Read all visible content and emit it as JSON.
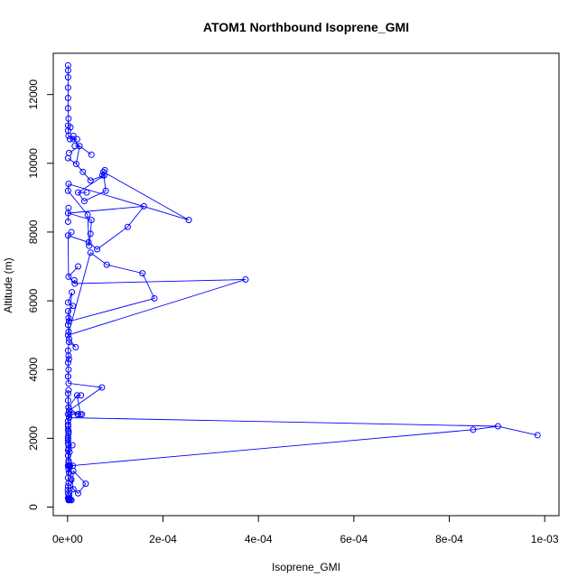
{
  "chart_data": {
    "type": "line",
    "title": "ATOM1 Northbound Isoprene_GMI",
    "xlabel": "Isoprene_GMI",
    "ylabel": "Altitude (m)",
    "xlim": [
      -3e-05,
      0.00103
    ],
    "ylim": [
      -250,
      13200
    ],
    "xticks": [
      0,
      0.0002,
      0.0004,
      0.0006,
      0.0008,
      0.001
    ],
    "xtick_labels": [
      "0e+00",
      "2e-04",
      "4e-04",
      "6e-04",
      "8e-04",
      "1e-03"
    ],
    "yticks": [
      0,
      2000,
      4000,
      6000,
      8000,
      10000,
      12000
    ],
    "ytick_labels": [
      "0",
      "2000",
      "4000",
      "6000",
      "8000",
      "10000",
      "12000"
    ],
    "grid": false,
    "color": "#0000ff",
    "marker": "open-circle",
    "series": [
      {
        "x": [
          2e-06,
          3e-06,
          1e-06,
          2e-06,
          1e-06,
          5e-07,
          1e-06,
          2e-06,
          1e-06,
          3e-06,
          2e-06,
          1e-06,
          2e-06,
          1e-06,
          1e-06,
          2e-06,
          1e-06,
          1e-06,
          2e-06,
          1e-06,
          1e-06,
          3e-06,
          5e-06,
          8e-06,
          1.2e-05,
          2.2e-05,
          3.8e-05,
          1.2e-05,
          8e-06,
          6e-06,
          4e-06,
          3e-06,
          2e-06,
          1e-06,
          2e-06,
          1e-06,
          2e-06,
          1e-06,
          1e-06,
          2e-06,
          1e-06,
          1e-06,
          1e-06,
          2e-06,
          1e-06,
          1e-06,
          3e-06,
          1.1e-05,
          5e-06,
          0.00085,
          0.000902,
          3e-06,
          4e-06,
          2.1e-05,
          2e-06,
          2e-05,
          2.7e-05,
          2.2e-05,
          3e-06,
          7.2e-05,
          2e-06,
          1e-06,
          2e-06,
          1e-06,
          2e-06,
          1e-06,
          3e-06,
          1.7e-05,
          3e-06,
          2e-06,
          1e-06,
          2e-06,
          1e-06,
          1.1e-05,
          1e-06,
          9e-06,
          3e-06,
          0.000182,
          0.000157,
          8.2e-05,
          4.8e-05,
          1e-06,
          0.000373,
          1.5e-05,
          2e-06,
          1e-06,
          4.4e-05,
          6.2e-05,
          0.000126,
          0.00016,
          1e-06,
          5e-05,
          4.8e-05,
          4.5e-05,
          4.2e-05,
          1e-06,
          2e-06,
          0.000254,
          7.5e-05,
          8e-05,
          3.5e-05,
          2.2e-05,
          7.7e-05,
          4.8e-05,
          3.2e-05,
          1.8e-05,
          2.5e-05,
          1.2e-05,
          2e-06,
          1e-06,
          1e-06,
          2e-06,
          1e-06,
          1e-06,
          1e-06,
          1e-06,
          1e-06,
          1e-06
        ],
        "y": [
          200,
          230,
          260,
          320,
          400,
          500,
          600,
          700,
          850,
          1000,
          1100,
          1200,
          1300,
          1500,
          1650,
          1800,
          1950,
          2050,
          2150,
          2250,
          2400,
          1000,
          1200,
          800,
          520,
          400,
          680,
          1050,
          200,
          220,
          250,
          210,
          240,
          1200,
          1350,
          1500,
          1700,
          1850,
          2000,
          2200,
          2350,
          2500,
          2700,
          2900,
          3100,
          3300,
          1200,
          1200,
          1200,
          2250,
          2350,
          2600,
          2700,
          2700,
          2900,
          3250,
          2700,
          2700,
          2800,
          3480,
          3600,
          3800,
          4000,
          4200,
          4400,
          4550,
          4800,
          4650,
          4900,
          5100,
          5300,
          5500,
          5700,
          5850,
          5950,
          6250,
          5400,
          6070,
          6800,
          7050,
          7400,
          5000,
          6620,
          6500,
          6700,
          7900,
          7700,
          7500,
          8150,
          8750,
          8550,
          8350,
          7950,
          7600,
          8500,
          9200,
          9400,
          8350,
          9750,
          9200,
          8900,
          9150,
          9650,
          9500,
          9750,
          9980,
          10500,
          10700,
          10800,
          10950,
          11100,
          11300,
          11600,
          11900,
          12200,
          12500,
          12700,
          12850
        ]
      }
    ],
    "extra_points": {
      "x": [
        5e-06,
        1.2e-05,
        2e-05,
        1.5e-05,
        3e-06,
        1e-06,
        6e-06,
        5e-05,
        7.8e-05,
        7.3e-05,
        4e-05,
        2e-06,
        1e-06,
        8e-06,
        2.2e-05,
        2.8e-05,
        3e-06,
        3e-05,
        1e-05,
        4e-06,
        2e-06,
        1e-06,
        1.4e-05,
        3e-06,
        0.000985
      ],
      "y": [
        10700,
        10800,
        10700,
        10500,
        10300,
        10150,
        11050,
        10250,
        9800,
        9650,
        9150,
        8700,
        8300,
        8000,
        7000,
        3250,
        2600,
        2700,
        1800,
        1600,
        3400,
        3800,
        6600,
        4300,
        2090
      ]
    }
  }
}
